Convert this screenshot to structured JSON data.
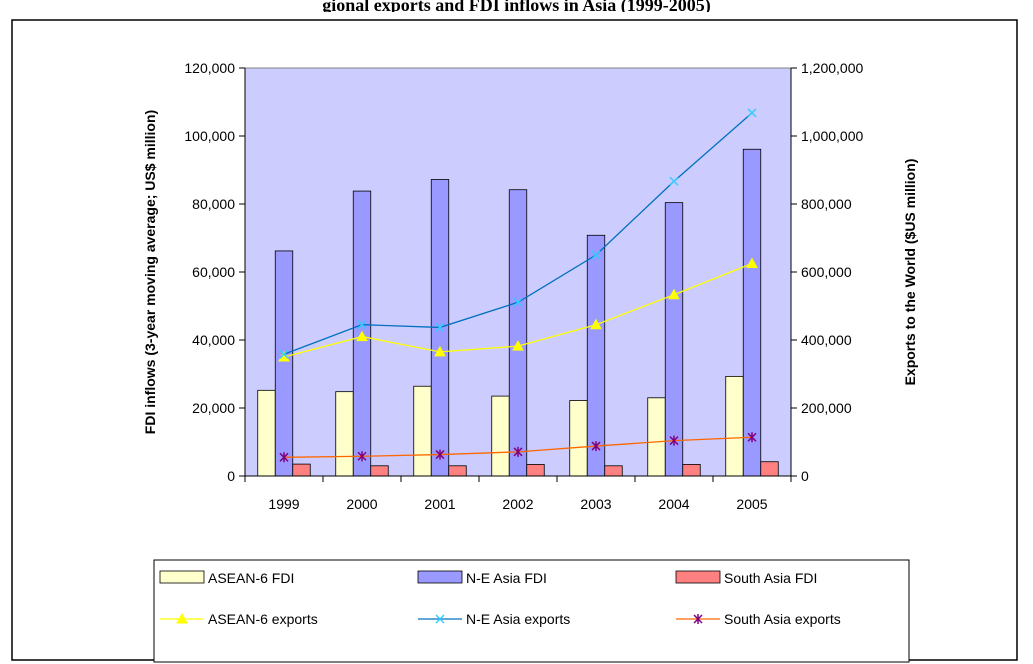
{
  "figure_title": "gional exports and FDI inflows in Asia (1999-2005)",
  "chart_data": {
    "type": "bar",
    "title": "gional exports and FDI inflows in Asia (1999-2005)",
    "categories": [
      "1999",
      "2000",
      "2001",
      "2002",
      "2003",
      "2004",
      "2005"
    ],
    "ylabel": "FDI inflows (3-year moving average; US$ million)",
    "y2label": "Exports to the World ($US million)",
    "ylim": [
      0,
      120000
    ],
    "y2lim": [
      0,
      1200000
    ],
    "yticks": [
      "0",
      "20,000",
      "40,000",
      "60,000",
      "80,000",
      "100,000",
      "120,000"
    ],
    "y2ticks": [
      "0",
      "200,000",
      "400,000",
      "600,000",
      "800,000",
      "1,000,000",
      "1,200,000"
    ],
    "grid": false,
    "plot_background": "#CCCCFF",
    "legend_position": "bottom",
    "bar_series": [
      {
        "name": "ASEAN-6 FDI",
        "color": "#FFFFCC",
        "values": [
          25200,
          24800,
          26400,
          23500,
          22200,
          23000,
          29300
        ]
      },
      {
        "name": "N-E Asia FDI",
        "color": "#9999FF",
        "values": [
          66200,
          83800,
          87200,
          84200,
          70800,
          80400,
          96100
        ]
      },
      {
        "name": "South Asia FDI",
        "color": "#FF8080",
        "values": [
          3500,
          3000,
          3000,
          3400,
          3000,
          3400,
          4200
        ]
      }
    ],
    "line_series": [
      {
        "name": "ASEAN-6 exports",
        "color": "#FFFF00",
        "marker": "triangle",
        "axis": "right",
        "values": [
          350000,
          410000,
          365000,
          382000,
          445000,
          533000,
          625000
        ]
      },
      {
        "name": "N-E Asia exports",
        "color": "#0070C0",
        "marker_color": "#33CCFF",
        "marker": "x",
        "axis": "right",
        "values": [
          358000,
          445000,
          437000,
          511000,
          650000,
          867000,
          1068000
        ]
      },
      {
        "name": "South Asia exports",
        "color": "#FF6600",
        "marker_color": "#800080",
        "marker": "star",
        "axis": "right",
        "values": [
          55000,
          58000,
          63000,
          71000,
          88000,
          104000,
          114000
        ]
      }
    ]
  }
}
